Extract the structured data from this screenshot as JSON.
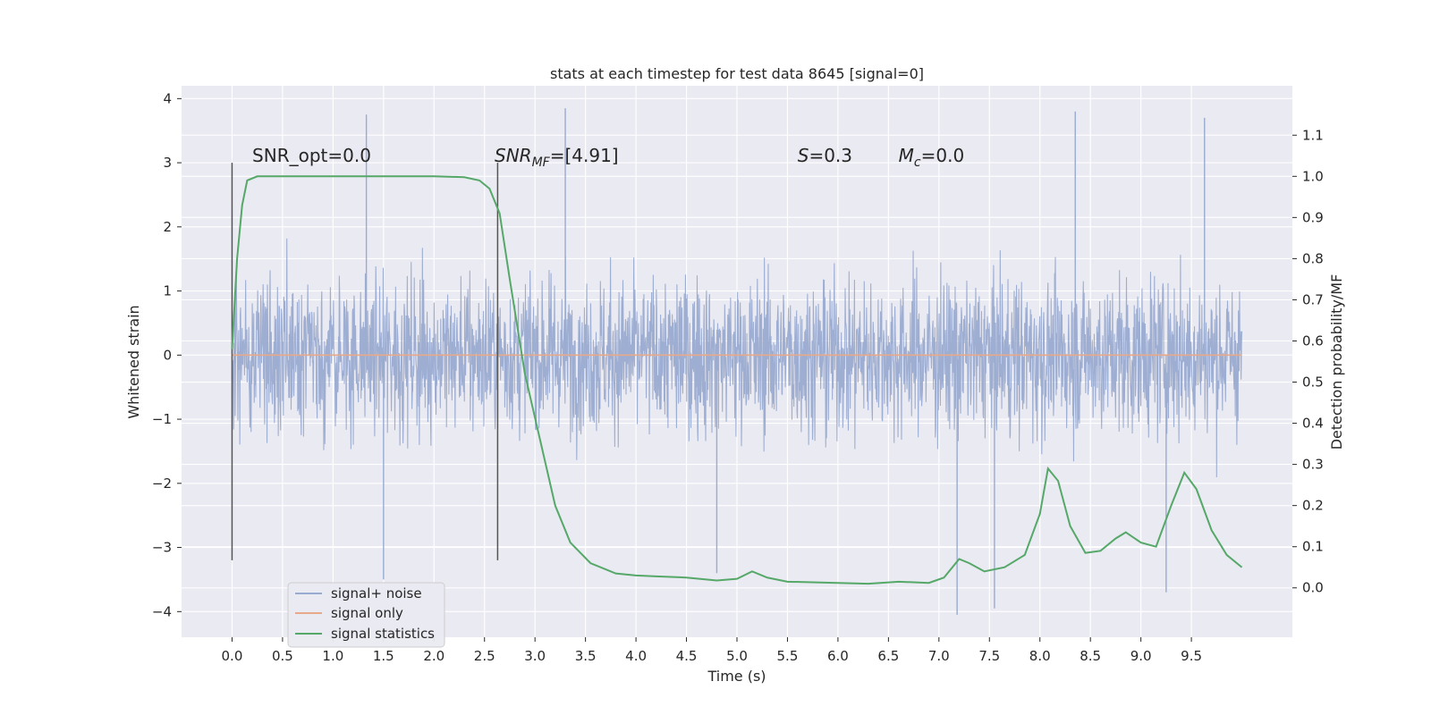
{
  "chart_data": {
    "type": "line",
    "title": "stats at each timestep for test data 8645 [signal=0]",
    "xlabel": "Time (s)",
    "ylabel": "Whitened strain",
    "ylabel_right": "Detection probability/MF",
    "xlim": [
      -0.5,
      10.5
    ],
    "ylim": [
      -4.4,
      4.2
    ],
    "ylim_right": [
      -0.12,
      1.22
    ],
    "x_ticks": [
      "0.0",
      "0.5",
      "1.0",
      "1.5",
      "2.0",
      "2.5",
      "3.0",
      "3.5",
      "4.0",
      "4.5",
      "5.0",
      "5.5",
      "6.0",
      "6.5",
      "7.0",
      "7.5",
      "8.0",
      "8.5",
      "9.0",
      "9.5"
    ],
    "y_ticks": [
      "4",
      "3",
      "2",
      "1",
      "0",
      "−1",
      "−2",
      "−3",
      "−4"
    ],
    "y_right_ticks": [
      "1.1",
      "1.0",
      "0.9",
      "0.8",
      "0.7",
      "0.6",
      "0.5",
      "0.4",
      "0.3",
      "0.2",
      "0.1",
      "0.0"
    ],
    "grid": true,
    "legend_placement": "lower-left",
    "annotations": [
      {
        "text": "SNR_opt=0.0",
        "x": 0.2,
        "y": 3.0
      },
      {
        "text": "SNR",
        "sub": "MF",
        "suffix": "=[4.91]",
        "italic": true,
        "x": 2.6,
        "y": 3.0
      },
      {
        "text": "S",
        "suffix": "=0.3",
        "italic": true,
        "x": 5.6,
        "y": 3.0
      },
      {
        "text": "M",
        "sub": "c",
        "suffix": "=0.0",
        "italic": true,
        "x": 6.6,
        "y": 3.0
      }
    ],
    "vlines": [
      {
        "x": 0.0,
        "y0": -3.2,
        "y1": 3.0
      },
      {
        "x": 2.63,
        "y0": -3.2,
        "y1": 3.0
      }
    ],
    "series": [
      {
        "name": "signal+ noise",
        "color": "#9aabd0",
        "x_range": [
          0.0,
          10.0
        ],
        "envelope_upper_approx": 2.0,
        "envelope_lower_approx": -2.0,
        "peaks": [
          {
            "x": 1.33,
            "y": 3.75
          },
          {
            "x": 3.3,
            "y": 3.85
          },
          {
            "x": 8.35,
            "y": 3.8
          },
          {
            "x": 9.63,
            "y": 3.7
          },
          {
            "x": 1.5,
            "y": -3.5
          },
          {
            "x": 7.18,
            "y": -4.05
          },
          {
            "x": 7.55,
            "y": -3.95
          },
          {
            "x": 9.25,
            "y": -3.7
          },
          {
            "x": 4.8,
            "y": -3.4
          }
        ]
      },
      {
        "name": "signal only",
        "color": "#e8a98a",
        "x": [
          0.0,
          10.0
        ],
        "y": [
          0.0,
          0.0
        ]
      },
      {
        "name": "signal statistics",
        "color": "#55a868",
        "axis": "right",
        "x": [
          0.0,
          0.05,
          0.1,
          0.15,
          0.25,
          0.5,
          1.0,
          1.5,
          2.0,
          2.3,
          2.45,
          2.55,
          2.65,
          2.75,
          2.9,
          3.05,
          3.2,
          3.35,
          3.55,
          3.8,
          4.0,
          4.2,
          4.5,
          4.8,
          5.0,
          5.15,
          5.3,
          5.5,
          6.0,
          6.3,
          6.6,
          6.9,
          7.05,
          7.2,
          7.3,
          7.45,
          7.65,
          7.85,
          8.0,
          8.08,
          8.18,
          8.3,
          8.45,
          8.6,
          8.75,
          8.85,
          9.0,
          9.15,
          9.3,
          9.43,
          9.55,
          9.7,
          9.85,
          10.0
        ],
        "y": [
          0.58,
          0.8,
          0.93,
          0.99,
          1.0,
          1.0,
          1.0,
          1.0,
          1.0,
          0.998,
          0.99,
          0.97,
          0.91,
          0.75,
          0.52,
          0.36,
          0.2,
          0.11,
          0.06,
          0.035,
          0.03,
          0.028,
          0.025,
          0.018,
          0.022,
          0.04,
          0.025,
          0.015,
          0.012,
          0.01,
          0.015,
          0.012,
          0.025,
          0.07,
          0.06,
          0.04,
          0.05,
          0.08,
          0.18,
          0.29,
          0.26,
          0.15,
          0.085,
          0.09,
          0.12,
          0.135,
          0.11,
          0.1,
          0.2,
          0.28,
          0.24,
          0.14,
          0.08,
          0.05
        ]
      }
    ]
  }
}
